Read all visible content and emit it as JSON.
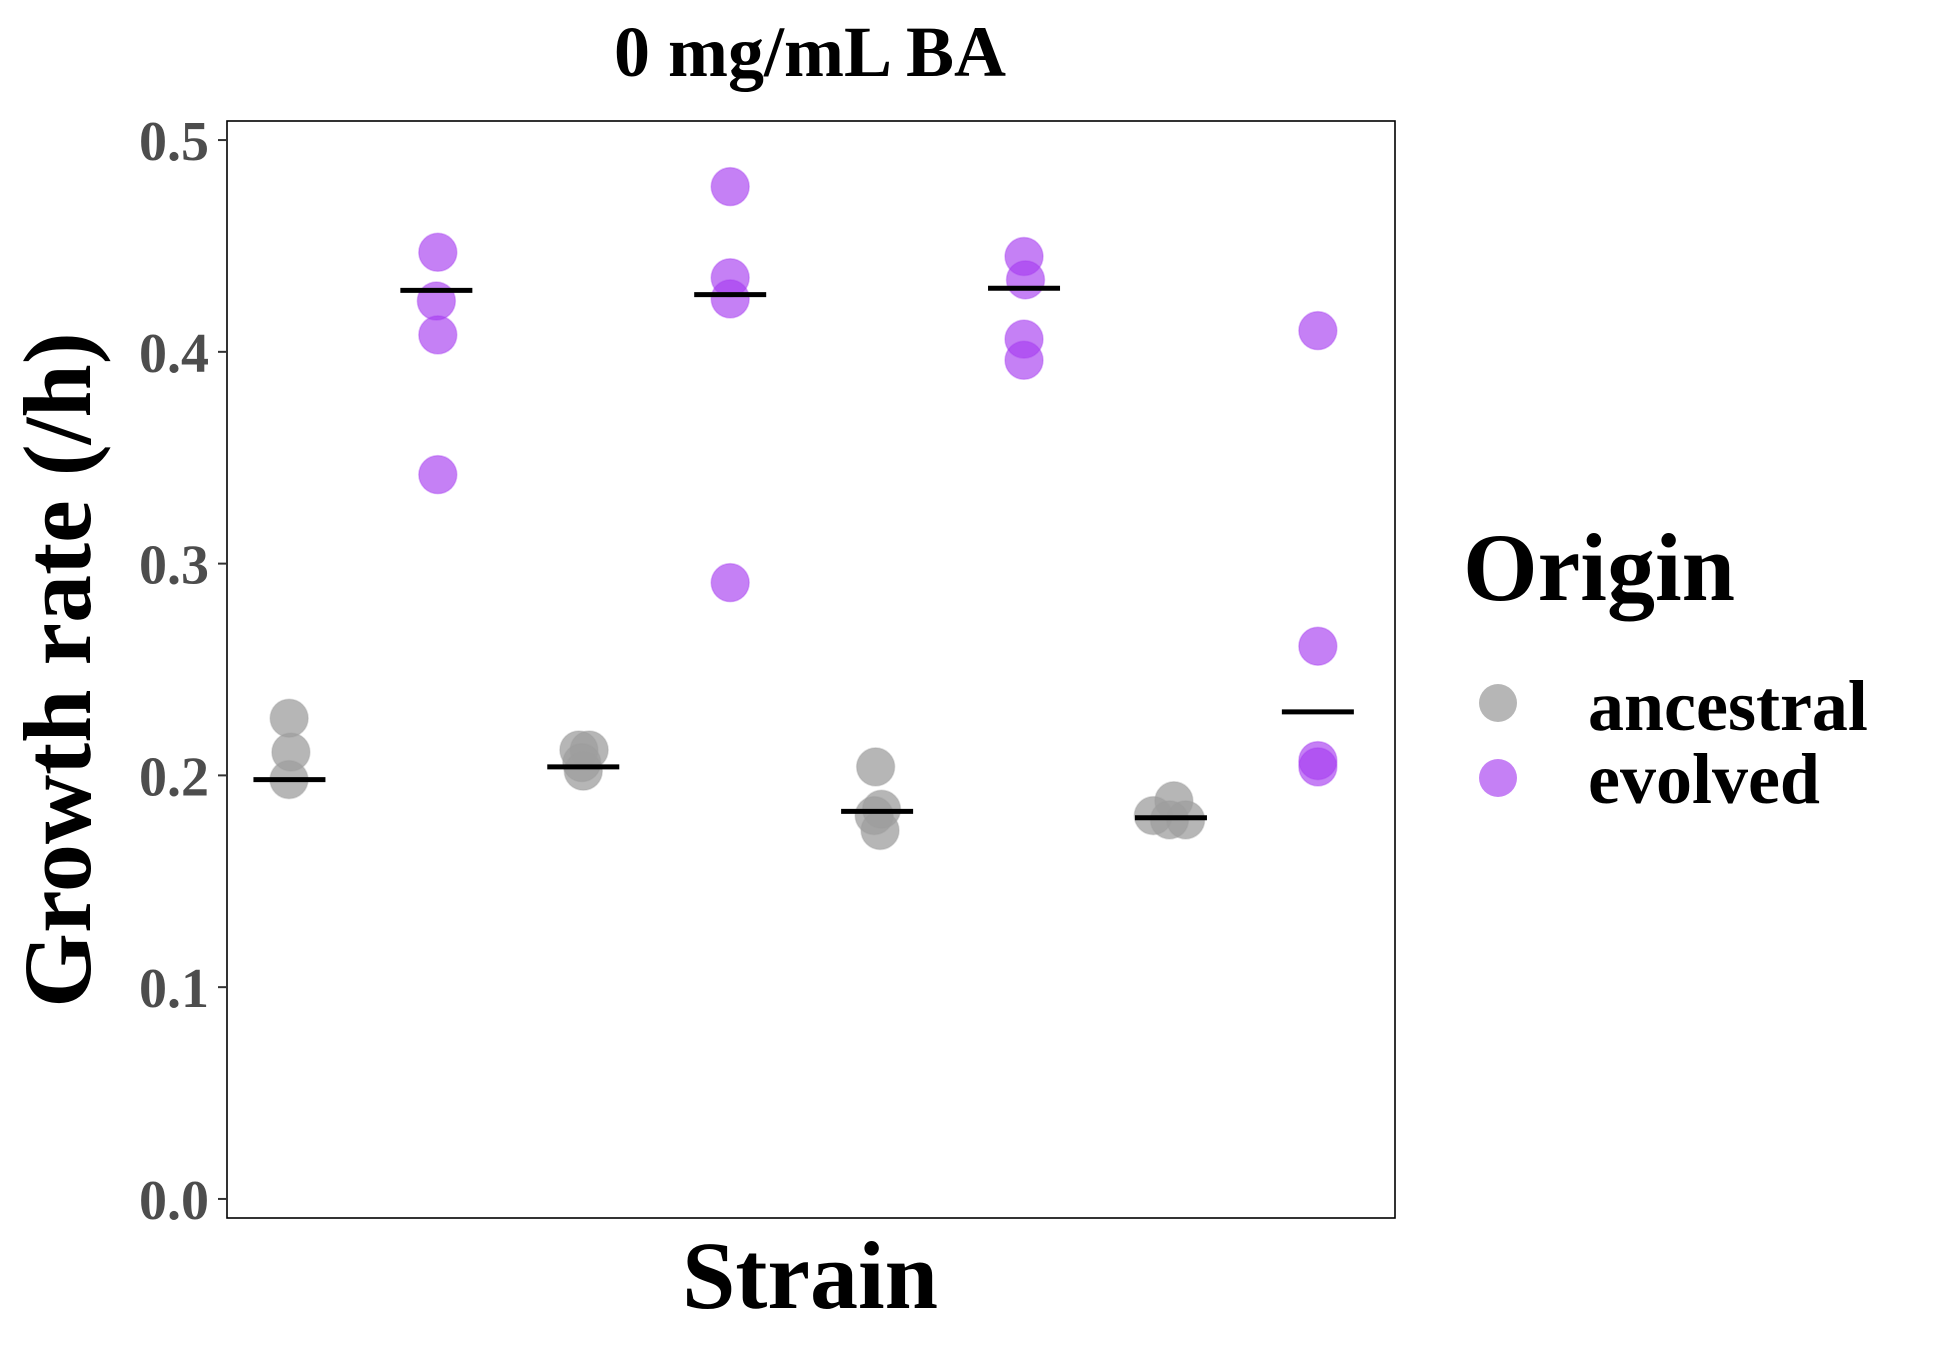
{
  "chart_data": {
    "type": "scatter",
    "title": "0 mg/mL BA",
    "xlabel": "Strain",
    "ylabel": "Growth rate (/h)",
    "ylim": [
      -0.009,
      0.509
    ],
    "yticks": [
      0.0,
      0.1,
      0.2,
      0.3,
      0.4,
      0.5
    ],
    "ytick_labels": [
      "0.0",
      "0.1",
      "0.2",
      "0.3",
      "0.4",
      "0.5"
    ],
    "grid": false,
    "legend": {
      "title": "Origin",
      "position": "right",
      "entries": [
        {
          "label": "ancestral",
          "color": "#9e9e9e"
        },
        {
          "label": "evolved",
          "color": "#a63cf0"
        }
      ]
    },
    "series": [
      {
        "name": "ancestral",
        "color": "#9e9e9e",
        "opacity": 0.75,
        "groups": [
          {
            "x": 1,
            "mean": 0.198,
            "points": [
              [
                0.998,
                0.227
              ],
              [
                1.01,
                0.211
              ],
              [
                0.997,
                0.198
              ]
            ]
          },
          {
            "x": 3,
            "mean": 0.204,
            "points": [
              [
                3.04,
                0.212
              ],
              [
                2.97,
                0.212
              ],
              [
                2.99,
                0.206
              ],
              [
                3.0,
                0.202
              ]
            ]
          },
          {
            "x": 5,
            "mean": 0.183,
            "points": [
              [
                4.99,
                0.204
              ],
              [
                5.03,
                0.184
              ],
              [
                4.98,
                0.181
              ],
              [
                5.02,
                0.174
              ]
            ]
          },
          {
            "x": 7,
            "mean": 0.18,
            "points": [
              [
                6.88,
                0.181
              ],
              [
                7.02,
                0.188
              ],
              [
                7.1,
                0.179
              ],
              [
                6.99,
                0.179
              ]
            ]
          }
        ]
      },
      {
        "name": "evolved",
        "color": "#a63cf0",
        "opacity": 0.65,
        "groups": [
          {
            "x": 2,
            "mean": 0.429,
            "points": [
              [
                2.01,
                0.447
              ],
              [
                2.0,
                0.424
              ],
              [
                2.01,
                0.408
              ],
              [
                2.01,
                0.342
              ]
            ]
          },
          {
            "x": 4,
            "mean": 0.427,
            "points": [
              [
                4.0,
                0.478
              ],
              [
                4.0,
                0.435
              ],
              [
                4.0,
                0.425
              ],
              [
                4.0,
                0.291
              ]
            ]
          },
          {
            "x": 6,
            "mean": 0.43,
            "points": [
              [
                6.0,
                0.445
              ],
              [
                6.01,
                0.434
              ],
              [
                6.0,
                0.406
              ],
              [
                6.0,
                0.396
              ]
            ]
          },
          {
            "x": 8,
            "mean": 0.23,
            "points": [
              [
                8.0,
                0.41
              ],
              [
                8.0,
                0.261
              ],
              [
                8.0,
                0.207
              ],
              [
                8.0,
                0.204
              ]
            ]
          }
        ]
      }
    ]
  }
}
